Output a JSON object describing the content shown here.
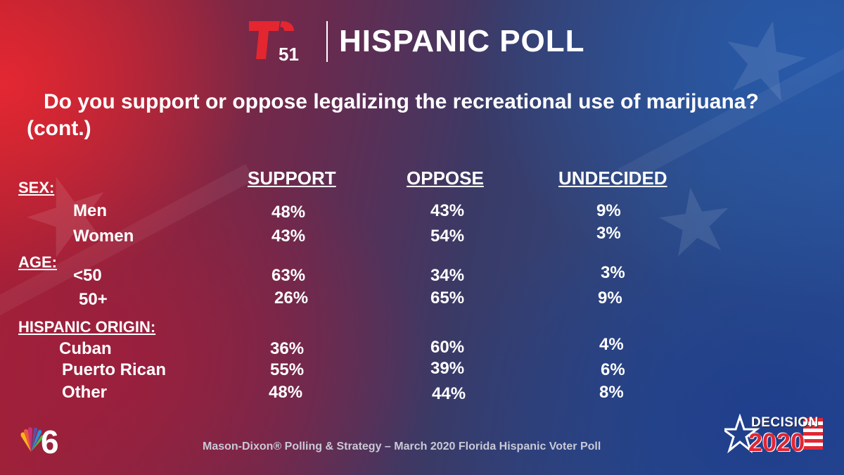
{
  "header": {
    "logo_number": "51",
    "title": "HISPANIC POLL"
  },
  "question": {
    "line1": "Do you support or oppose legalizing the recreational use of marijuana?",
    "line2": "(cont.)"
  },
  "columns": [
    "SUPPORT",
    "OPPOSE",
    "UNDECIDED"
  ],
  "sections": [
    {
      "label": "SEX:",
      "rows": [
        {
          "label": "Men",
          "values": [
            "48%",
            "43%",
            "9%"
          ]
        },
        {
          "label": "Women",
          "values": [
            "43%",
            "54%",
            "3%"
          ]
        }
      ]
    },
    {
      "label": "AGE:",
      "rows": [
        {
          "label": "<50",
          "values": [
            "63%",
            "34%",
            "3%"
          ]
        },
        {
          "label": "50+",
          "values": [
            "26%",
            "65%",
            "9%"
          ]
        }
      ]
    },
    {
      "label": "HISPANIC ORIGIN:",
      "rows": [
        {
          "label": "Cuban",
          "values": [
            "36%",
            "60%",
            "4%"
          ]
        },
        {
          "label": "Puerto Rican",
          "values": [
            "55%",
            "39%",
            "6%"
          ]
        },
        {
          "label": "Other",
          "values": [
            "48%",
            "44%",
            "8%"
          ]
        }
      ]
    }
  ],
  "footer": {
    "source": "Mason-Dixon® Polling & Strategy – March 2020 Florida Hispanic Voter Poll",
    "nbc_channel": "6",
    "decision_word": "DECISION",
    "decision_year": "2020"
  },
  "colors": {
    "telemundo_red": "#e3262f",
    "bg_red": "#b0202f",
    "bg_blue": "#2a4f93"
  },
  "icons": [
    "telemundo-t-logo",
    "nbc-peacock-logo",
    "decision-2020-star-logo"
  ]
}
